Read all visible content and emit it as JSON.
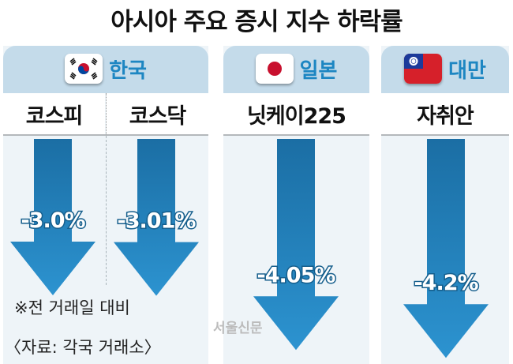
{
  "title": "아시아 주요 증시 지수 하락률",
  "countries": [
    {
      "name": "한국",
      "flag_icon": "south-korea-flag-icon"
    },
    {
      "name": "일본",
      "flag_icon": "japan-flag-icon"
    },
    {
      "name": "대만",
      "flag_icon": "taiwan-flag-icon"
    }
  ],
  "chart_data": {
    "type": "bar",
    "orientation": "downward-arrows",
    "categories": [
      "코스피",
      "코스닥",
      "닛케이225",
      "자취안"
    ],
    "groups": [
      "한국",
      "한국",
      "일본",
      "대만"
    ],
    "values": [
      -3.0,
      -3.01,
      -4.05,
      -4.2
    ],
    "value_labels": [
      "-3.0%",
      "-3.01%",
      "-4.05%",
      "-4.2%"
    ],
    "unit": "%",
    "title": "아시아 주요 증시 지수 하락률",
    "xlabel": "",
    "ylabel": "",
    "grid": false,
    "legend": "none"
  },
  "notes": {
    "basis": "※전 거래일 대비",
    "source": "〈자료: 각국 거래소〉"
  },
  "watermark": "서울신문",
  "colors": {
    "header_band": "#c4dbea",
    "column_bg": "#eef4f8",
    "accent_text": "#1d86c2",
    "arrow_top": "#1b6ea4",
    "arrow_bottom": "#2c93d0"
  }
}
